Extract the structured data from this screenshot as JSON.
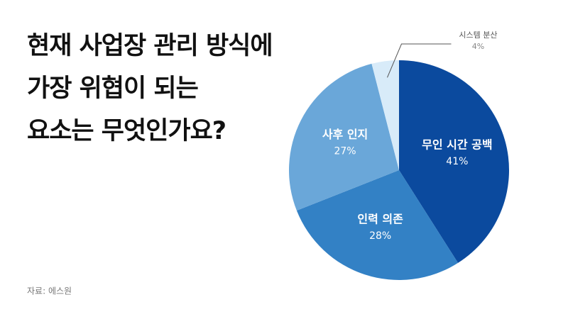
{
  "chart_data": {
    "type": "pie",
    "title": [
      "현재 사업장 관리 방식에",
      "가장 위협이 되는",
      "요소는 무엇인가요?"
    ],
    "source": "자료: 에스원",
    "categories": [
      "무인 시간 공백",
      "인력 의존",
      "사후 인지",
      "시스템 분산"
    ],
    "values": [
      41,
      28,
      27,
      4
    ],
    "value_labels": [
      "41%",
      "28%",
      "27%",
      "4%"
    ],
    "colors": [
      "#0b4a9e",
      "#3381c5",
      "#6aa7d9",
      "#d8ebf9"
    ]
  }
}
